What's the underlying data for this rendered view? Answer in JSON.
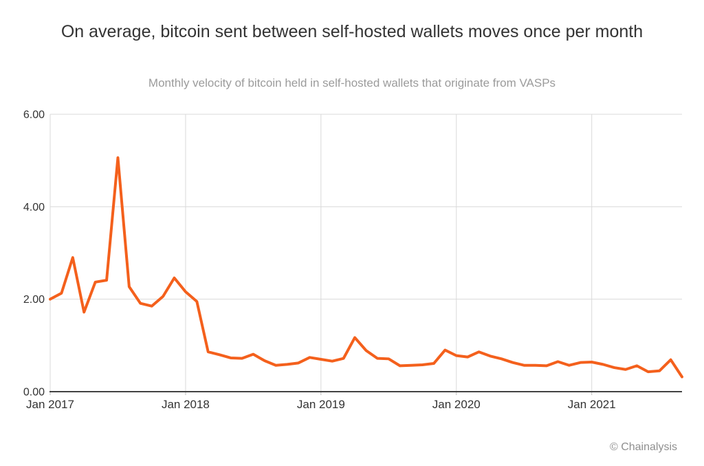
{
  "page": {
    "attribution": "© Chainalysis"
  },
  "colors": {
    "line": "#F4601C",
    "grid": "#D9D9D9",
    "tick_mark": "#BDBDBD",
    "axis": "#424242",
    "title_text": "#333333",
    "subtitle_text": "#9B9B9B",
    "tick_text": "#333333",
    "attribution_text": "#8F8F8F"
  },
  "chart_data": {
    "type": "line",
    "title": "On average, bitcoin sent between self-hosted wallets moves once per month",
    "subtitle": "Monthly velocity of bitcoin held in self-hosted wallets that originate from VASPs",
    "xlabel": "",
    "ylabel": "",
    "ylim": [
      0,
      6
    ],
    "grid": true,
    "legend": false,
    "y_ticks": [
      {
        "value": 0,
        "label": "0.00"
      },
      {
        "value": 2,
        "label": "2.00"
      },
      {
        "value": 4,
        "label": "4.00"
      },
      {
        "value": 6,
        "label": "6.00"
      }
    ],
    "x_ticks": [
      {
        "index": 0,
        "label": "Jan 2017"
      },
      {
        "index": 12,
        "label": "Jan 2018"
      },
      {
        "index": 24,
        "label": "Jan 2019"
      },
      {
        "index": 36,
        "label": "Jan 2020"
      },
      {
        "index": 48,
        "label": "Jan 2021"
      }
    ],
    "x": [
      "Jan 2017",
      "Feb 2017",
      "Mar 2017",
      "Apr 2017",
      "May 2017",
      "Jun 2017",
      "Jul 2017",
      "Aug 2017",
      "Sep 2017",
      "Oct 2017",
      "Nov 2017",
      "Dec 2017",
      "Jan 2018",
      "Feb 2018",
      "Mar 2018",
      "Apr 2018",
      "May 2018",
      "Jun 2018",
      "Jul 2018",
      "Aug 2018",
      "Sep 2018",
      "Oct 2018",
      "Nov 2018",
      "Dec 2018",
      "Jan 2019",
      "Feb 2019",
      "Mar 2019",
      "Apr 2019",
      "May 2019",
      "Jun 2019",
      "Jul 2019",
      "Aug 2019",
      "Sep 2019",
      "Oct 2019",
      "Nov 2019",
      "Dec 2019",
      "Jan 2020",
      "Feb 2020",
      "Mar 2020",
      "Apr 2020",
      "May 2020",
      "Jun 2020",
      "Jul 2020",
      "Aug 2020",
      "Sep 2020",
      "Oct 2020",
      "Nov 2020",
      "Dec 2020",
      "Jan 2021",
      "Feb 2021",
      "Mar 2021",
      "Apr 2021",
      "May 2021",
      "Jun 2021",
      "Jul 2021",
      "Aug 2021",
      "Sep 2021"
    ],
    "series": [
      {
        "name": "Monthly velocity of bitcoin",
        "color": "#F4601C",
        "values": [
          2.0,
          2.13,
          2.9,
          1.72,
          2.37,
          2.41,
          5.06,
          2.27,
          1.91,
          1.85,
          2.06,
          2.46,
          2.16,
          1.95,
          0.86,
          0.8,
          0.73,
          0.72,
          0.81,
          0.67,
          0.57,
          0.59,
          0.62,
          0.74,
          0.7,
          0.66,
          0.72,
          1.17,
          0.89,
          0.72,
          0.71,
          0.56,
          0.57,
          0.58,
          0.61,
          0.9,
          0.78,
          0.75,
          0.86,
          0.77,
          0.71,
          0.63,
          0.57,
          0.57,
          0.56,
          0.65,
          0.57,
          0.63,
          0.64,
          0.59,
          0.52,
          0.48,
          0.56,
          0.43,
          0.45,
          0.69,
          0.32
        ]
      }
    ]
  }
}
